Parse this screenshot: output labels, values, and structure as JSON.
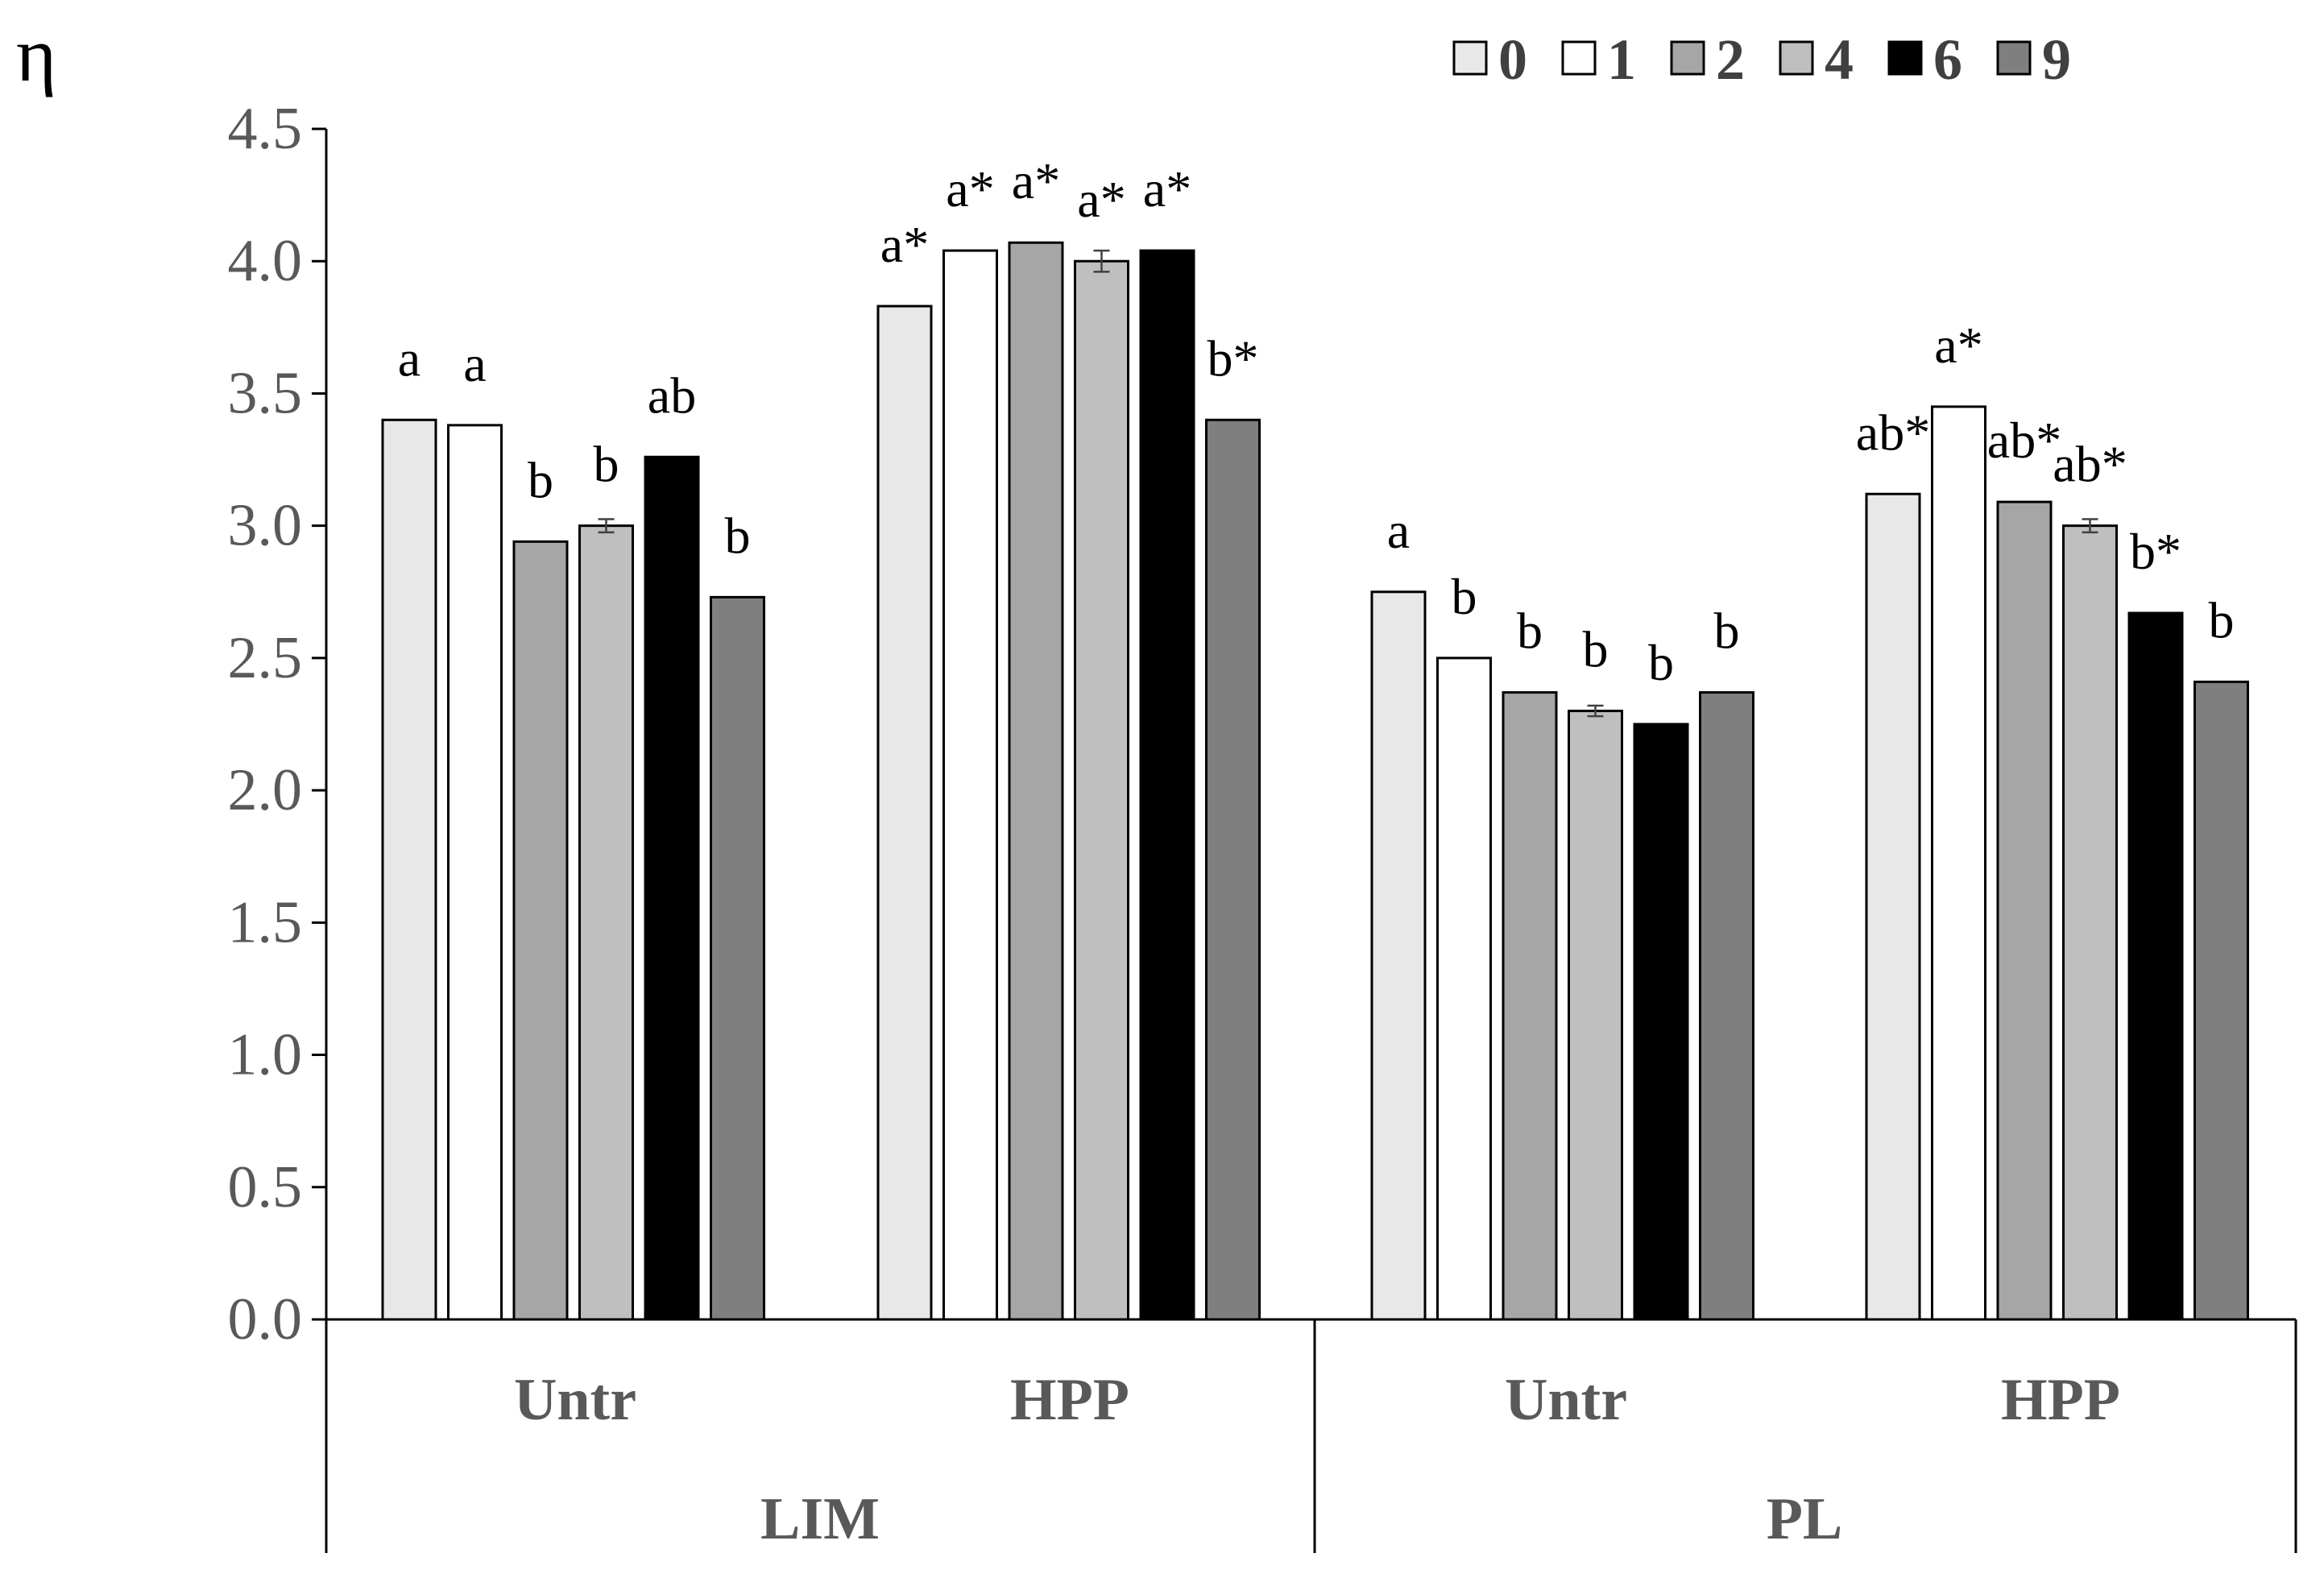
{
  "chart_data": {
    "type": "bar",
    "ylabel": "η",
    "ylim": [
      0,
      4.5
    ],
    "yticks": [
      "0.0",
      "0.5",
      "1.0",
      "1.5",
      "2.0",
      "2.5",
      "3.0",
      "3.5",
      "4.0",
      "4.5"
    ],
    "grid": false,
    "legend_position": "top-right",
    "groups": [
      {
        "name": "LIM",
        "subgroups": [
          "Untr",
          "HPP"
        ]
      },
      {
        "name": "PL",
        "subgroups": [
          "Untr",
          "HPP"
        ]
      }
    ],
    "categories": [
      "LIM Untr",
      "LIM HPP",
      "PL Untr",
      "PL HPP"
    ],
    "series": [
      {
        "name": "0",
        "color": "#e8e8e8",
        "values": [
          3.4,
          3.83,
          2.75,
          3.12
        ],
        "errors": [
          0.005,
          0.005,
          0.005,
          0.005
        ],
        "labels": [
          "a",
          "a*",
          "a",
          "ab*"
        ]
      },
      {
        "name": "1",
        "color": "#ffffff",
        "values": [
          3.38,
          4.04,
          2.5,
          3.45
        ],
        "errors": [
          0.005,
          0.005,
          0.005,
          0.005
        ],
        "labels": [
          "a",
          "a*",
          "b",
          "a*"
        ]
      },
      {
        "name": "2",
        "color": "#a6a6a6",
        "values": [
          2.94,
          4.07,
          2.37,
          3.09
        ],
        "errors": [
          0.005,
          0.005,
          0.005,
          0.005
        ],
        "labels": [
          "b",
          "a*",
          "b",
          "ab*"
        ]
      },
      {
        "name": "4",
        "color": "#bfbfbf",
        "values": [
          3.0,
          4.0,
          2.3,
          3.0
        ],
        "errors": [
          0.025,
          0.04,
          0.02,
          0.025
        ],
        "labels": [
          "b",
          "a*",
          "b",
          "ab*"
        ]
      },
      {
        "name": "6",
        "color": "#000000",
        "values": [
          3.26,
          4.04,
          2.25,
          2.67
        ],
        "errors": [
          0.005,
          0.005,
          0.005,
          0.005
        ],
        "labels": [
          "ab",
          "a*",
          "b",
          "b*"
        ]
      },
      {
        "name": "9",
        "color": "#7f7f7f",
        "values": [
          2.73,
          3.4,
          2.37,
          2.41
        ],
        "errors": [
          0.005,
          0.005,
          0.005,
          0.005
        ],
        "labels": [
          "b",
          "b*",
          "b",
          "b"
        ]
      }
    ]
  }
}
